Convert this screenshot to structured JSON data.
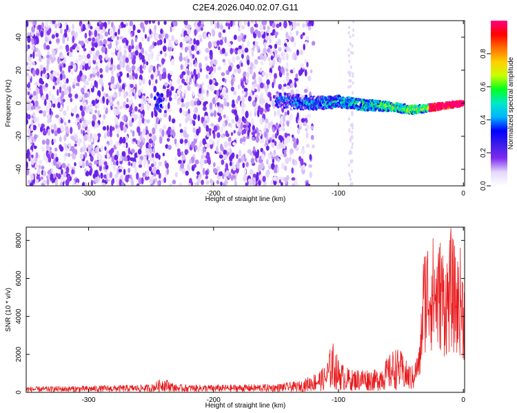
{
  "title": "C2E4.2026.040.02.07.G11",
  "colors": {
    "snr_line": "#e8191b",
    "axis": "#000000"
  },
  "chart_data": [
    {
      "type": "heatmap",
      "title": "",
      "xlabel": "Height of straight line (km)",
      "ylabel": "Frequency (Hz)",
      "xlim": [
        -350,
        1
      ],
      "ylim": [
        -50,
        50
      ],
      "x_ticks": [
        -300,
        -200,
        -100,
        0
      ],
      "y_ticks": [
        -40,
        -20,
        0,
        20,
        40
      ],
      "colorbar": {
        "label": "Normalized spectral amplitude",
        "range": [
          0,
          1
        ],
        "ticks": [
          "0.0",
          "0.2",
          "0.4",
          "0.6",
          "0.8"
        ],
        "ramp": [
          "#ffffff",
          "#e4d7fb",
          "#7f2cf0",
          "#3d1de8",
          "#0000ff",
          "#00b4ff",
          "#00e8c8",
          "#00ff20",
          "#c8ff00",
          "#ffd000",
          "#ff7000",
          "#ff0000",
          "#ff0080"
        ]
      },
      "noise_region_x": [
        -350,
        -130
      ],
      "ridge": {
        "x": [
          -150,
          -120,
          -100,
          -80,
          -60,
          -40,
          -20,
          0
        ],
        "freq": [
          2,
          0,
          1,
          -1,
          -2,
          -4,
          -2,
          0
        ],
        "peak_amplitude": 1.0
      }
    },
    {
      "type": "line",
      "title": "",
      "xlabel": "Height of straight line (km)",
      "ylabel": "SNR (10 * v/v)",
      "xlim": [
        -350,
        1
      ],
      "ylim": [
        0,
        8700
      ],
      "x_ticks": [
        -300,
        -200,
        -100,
        0
      ],
      "y_ticks": [
        0,
        2000,
        4000,
        6000,
        8000
      ],
      "series": [
        {
          "envelope_x": [
            -350,
            -300,
            -250,
            -240,
            -230,
            -200,
            -150,
            -130,
            -120,
            -110,
            -105,
            -100,
            -95,
            -90,
            -80,
            -70,
            -60,
            -55,
            -50,
            -45,
            -40,
            -35,
            -32,
            -30,
            -25,
            -20,
            -18,
            -15,
            -12,
            -10,
            -5,
            -2,
            0
          ],
          "envelope_y": [
            300,
            350,
            420,
            800,
            420,
            400,
            450,
            600,
            1000,
            1400,
            2800,
            1800,
            1400,
            1200,
            1300,
            1200,
            1900,
            2400,
            2200,
            1600,
            1400,
            2500,
            7400,
            8300,
            8400,
            7800,
            8500,
            7200,
            7700,
            8700,
            7200,
            7800,
            6400
          ]
        }
      ]
    }
  ]
}
